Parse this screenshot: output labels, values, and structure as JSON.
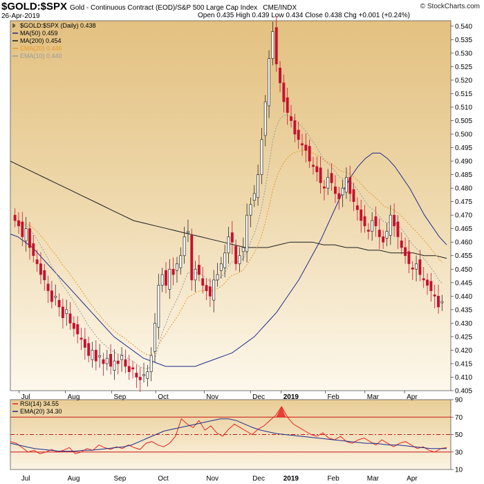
{
  "header": {
    "symbol": "$GOLD:$SPX",
    "description": "Gold - Continuous Contract (EOD)/S&P 500 Large Cap Index",
    "exchange": "CME/INDX",
    "date": "26-Apr-2019",
    "credit": "© StockCharts.com",
    "open_label": "Open",
    "open": "0.435",
    "high_label": "High",
    "high": "0.439",
    "low_label": "Low",
    "low": "0.434",
    "close_label": "Close",
    "close": "0.438",
    "chg_label": "Chg",
    "chg": "+0.001 (+0.24%)"
  },
  "colors": {
    "panel_gold": "#e8c98e",
    "panel_light": "#fbf5e6",
    "up_candle": "#2a2a2a",
    "down_candle": "#c8102e",
    "ma50": "#1c2a8c",
    "ma200": "#1a1a1a",
    "ema20": "#e59b2a",
    "ema10": "#9a9a9a",
    "rsi": "#e8231e",
    "rsi_ema": "#1c2a8c",
    "rsi_lines": "#cc1111"
  },
  "chart_data": [
    {
      "type": "candlestick",
      "title": "$GOLD:$SPX (Daily) 0.438",
      "legend": [
        {
          "name": "$GOLD:$SPX (Daily) 0.438",
          "color": "#000000"
        },
        {
          "name": "MA(50) 0.459",
          "color": "#1c2a8c"
        },
        {
          "name": "MA(200) 0.454",
          "color": "#1a1a1a"
        },
        {
          "name": "EMA(20) 0.446",
          "color": "#e59b2a"
        },
        {
          "name": "EMA(10) 0.440",
          "color": "#9a9a9a"
        }
      ],
      "ylim": [
        0.405,
        0.542
      ],
      "y_ticks": [
        "0.540",
        "0.535",
        "0.530",
        "0.525",
        "0.520",
        "0.515",
        "0.510",
        "0.505",
        "0.500",
        "0.495",
        "0.490",
        "0.485",
        "0.480",
        "0.475",
        "0.470",
        "0.465",
        "0.460",
        "0.455",
        "0.450",
        "0.445",
        "0.440",
        "0.435",
        "0.430",
        "0.425",
        "0.420",
        "0.415",
        "0.410",
        "0.405"
      ],
      "x_ticks": [
        "Jul",
        "Aug",
        "Sep",
        "Oct",
        "Nov",
        "Dec",
        "2019",
        "Feb",
        "Mar",
        "Apr"
      ],
      "close_series": [
        0.468,
        0.466,
        0.462,
        0.465,
        0.458,
        0.455,
        0.452,
        0.448,
        0.446,
        0.442,
        0.438,
        0.44,
        0.436,
        0.432,
        0.435,
        0.43,
        0.428,
        0.426,
        0.424,
        0.421,
        0.418,
        0.42,
        0.416,
        0.418,
        0.415,
        0.417,
        0.414,
        0.416,
        0.415,
        0.418,
        0.414,
        0.412,
        0.413,
        0.41,
        0.409,
        0.411,
        0.412,
        0.418,
        0.43,
        0.444,
        0.448,
        0.444,
        0.45,
        0.448,
        0.452,
        0.455,
        0.462,
        0.464,
        0.446,
        0.45,
        0.448,
        0.444,
        0.442,
        0.44,
        0.446,
        0.448,
        0.452,
        0.456,
        0.462,
        0.46,
        0.452,
        0.455,
        0.458,
        0.47,
        0.474,
        0.478,
        0.485,
        0.498,
        0.512,
        0.528,
        0.538,
        0.526,
        0.519,
        0.512,
        0.508,
        0.505,
        0.5,
        0.498,
        0.496,
        0.494,
        0.49,
        0.488,
        0.486,
        0.482,
        0.48,
        0.484,
        0.482,
        0.478,
        0.476,
        0.48,
        0.484,
        0.478,
        0.475,
        0.472,
        0.468,
        0.466,
        0.464,
        0.468,
        0.466,
        0.462,
        0.46,
        0.464,
        0.47,
        0.466,
        0.462,
        0.458,
        0.455,
        0.452,
        0.45,
        0.452,
        0.448,
        0.446,
        0.444,
        0.442,
        0.44,
        0.436,
        0.438
      ],
      "ma50_series": [
        0.463,
        0.462,
        0.46,
        0.458,
        0.455,
        0.452,
        0.449,
        0.446,
        0.443,
        0.44,
        0.437,
        0.434,
        0.431,
        0.428,
        0.425,
        0.423,
        0.421,
        0.419,
        0.417,
        0.416,
        0.415,
        0.414,
        0.414,
        0.414,
        0.414,
        0.414,
        0.415,
        0.416,
        0.417,
        0.418,
        0.419,
        0.421,
        0.423,
        0.425,
        0.428,
        0.431,
        0.434,
        0.438,
        0.442,
        0.446,
        0.451,
        0.456,
        0.461,
        0.467,
        0.473,
        0.479,
        0.484,
        0.488,
        0.491,
        0.493,
        0.493,
        0.491,
        0.488,
        0.484,
        0.48,
        0.475,
        0.47,
        0.466,
        0.462,
        0.459
      ],
      "ma200_series": [
        0.49,
        0.488,
        0.486,
        0.484,
        0.482,
        0.48,
        0.478,
        0.476,
        0.474,
        0.472,
        0.47,
        0.468,
        0.467,
        0.466,
        0.465,
        0.464,
        0.463,
        0.462,
        0.461,
        0.46,
        0.459,
        0.458,
        0.458,
        0.458,
        0.459,
        0.46,
        0.46,
        0.46,
        0.459,
        0.459,
        0.458,
        0.458,
        0.457,
        0.457,
        0.456,
        0.456,
        0.456,
        0.455,
        0.455,
        0.454
      ],
      "ema20_latest": 0.446,
      "ema10_latest": 0.44,
      "last": 0.438
    },
    {
      "type": "line",
      "title": "RSI(14) 34.55",
      "legend": [
        {
          "name": "RSI(14) 34.55",
          "color": "#e8231e"
        },
        {
          "name": "EMA(20) 34.30",
          "color": "#1c2a8c"
        }
      ],
      "ylim": [
        10,
        90
      ],
      "y_ticks": [
        "90",
        "70",
        "50",
        "30",
        "10"
      ],
      "reference_lines": [
        70,
        50,
        30
      ],
      "x_ticks": [
        "Jul",
        "Aug",
        "Sep",
        "Oct",
        "Nov",
        "Dec",
        "2019",
        "Feb",
        "Mar",
        "Apr"
      ],
      "rsi_series": [
        42,
        40,
        35,
        30,
        32,
        28,
        30,
        33,
        30,
        32,
        35,
        28,
        30,
        34,
        32,
        38,
        35,
        33,
        36,
        34,
        38,
        35,
        33,
        40,
        42,
        38,
        36,
        40,
        48,
        68,
        62,
        58,
        66,
        55,
        60,
        52,
        48,
        56,
        62,
        58,
        54,
        50,
        56,
        60,
        66,
        72,
        82,
        70,
        62,
        58,
        54,
        50,
        48,
        52,
        46,
        44,
        48,
        42,
        40,
        44,
        46,
        42,
        38,
        44,
        40,
        36,
        40,
        42,
        38,
        34,
        36,
        32,
        30,
        34,
        35
      ],
      "ema_series": [
        40,
        38,
        36,
        34,
        33,
        32,
        31,
        31,
        31,
        32,
        32,
        33,
        34,
        35,
        36,
        38,
        42,
        46,
        50,
        54,
        56,
        58,
        60,
        62,
        64,
        66,
        68,
        68,
        66,
        62,
        58,
        55,
        53,
        51,
        50,
        49,
        48,
        47,
        46,
        45,
        44,
        43,
        42,
        41,
        40,
        40,
        39,
        38,
        38,
        37,
        36,
        35,
        34,
        34,
        34
      ]
    }
  ]
}
